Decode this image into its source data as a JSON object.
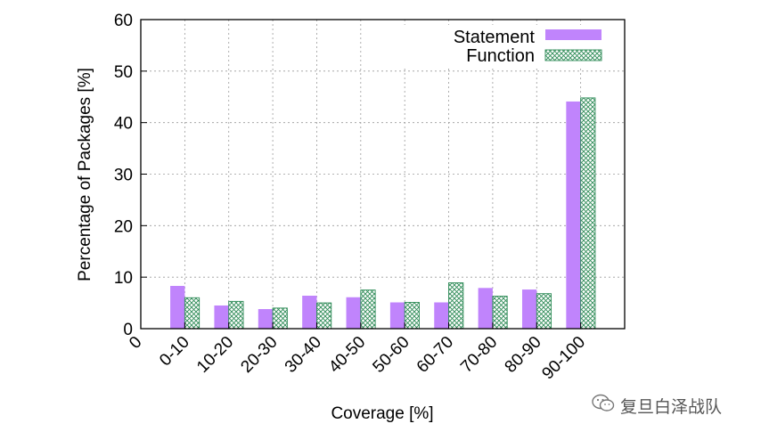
{
  "chart_data": {
    "type": "bar",
    "title": "",
    "xlabel": "Coverage [%]",
    "ylabel": "Percentage of Packages [%]",
    "ylim": [
      0,
      60
    ],
    "yticks": [
      "0",
      "10",
      "20",
      "30",
      "40",
      "50",
      "60"
    ],
    "x_extra_tick": "0",
    "categories": [
      "0-10",
      "10-20",
      "20-30",
      "30-40",
      "40-50",
      "50-60",
      "60-70",
      "70-80",
      "80-90",
      "90-100"
    ],
    "grid": true,
    "legend_position": "top-right",
    "series": [
      {
        "name": "Statement",
        "color": "#c084fc",
        "pattern": "solid",
        "values": [
          8.3,
          4.5,
          3.8,
          6.4,
          6.1,
          5.1,
          5.1,
          7.9,
          7.6,
          44.1
        ]
      },
      {
        "name": "Function",
        "color": "#2e8b57",
        "pattern": "crosshatch",
        "values": [
          6.0,
          5.3,
          4.0,
          5.0,
          7.5,
          5.1,
          8.9,
          6.3,
          6.8,
          44.8
        ]
      }
    ]
  },
  "watermark": {
    "icon": "wechat-icon",
    "text": "复旦白泽战队"
  },
  "caption_fragment": ""
}
